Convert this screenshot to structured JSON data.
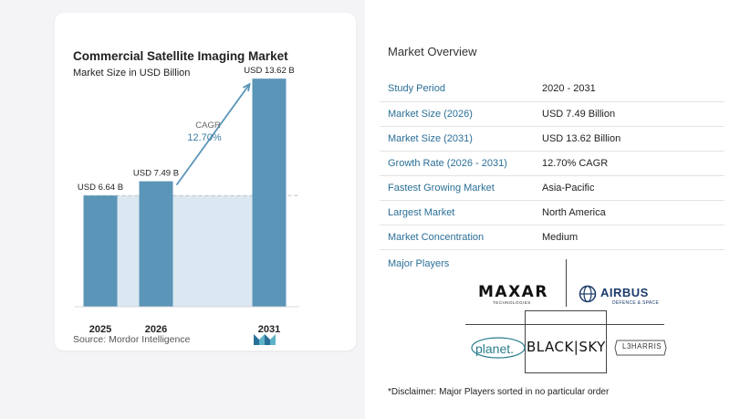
{
  "chart_data": {
    "type": "bar",
    "title": "Commercial Satellite Imaging Market",
    "subtitle": "Market Size in USD Billion",
    "categories": [
      "2025",
      "2026",
      "2031"
    ],
    "values": [
      6.64,
      7.49,
      13.62
    ],
    "data_labels": [
      "USD 6.64 B",
      "USD 7.49 B",
      "USD 13.62 B"
    ],
    "cagr_label": "CAGR",
    "cagr_value": "12.70%",
    "ylim": [
      0,
      14.5
    ],
    "grid": false,
    "colors": {
      "bar": "#5b95b8",
      "baseline_fill": "#dbe8f1",
      "arrow": "#5b95b8",
      "cagr_text": "#3d7fa6"
    }
  },
  "source": "Source:  Mordor Intelligence",
  "overview": {
    "title": "Market Overview",
    "rows": [
      {
        "label": "Study Period",
        "value": "2020 - 2031"
      },
      {
        "label": "Market Size (2026)",
        "value": "USD 7.49 Billion"
      },
      {
        "label": "Market Size (2031)",
        "value": "USD 13.62 Billion"
      },
      {
        "label": "Growth Rate (2026 - 2031)",
        "value": "12.70% CAGR"
      },
      {
        "label": "Fastest Growing Market",
        "value": "Asia-Pacific"
      },
      {
        "label": "Largest Market",
        "value": "North America"
      },
      {
        "label": "Market Concentration",
        "value": "Medium"
      }
    ]
  },
  "players": {
    "title": "Major Players",
    "logos": {
      "maxar": "MAXAR",
      "maxar_sub": "TECHNOLOGIES",
      "airbus": "AIRBUS",
      "airbus_sub": "DEFENCE & SPACE",
      "planet": "planet.",
      "blacksky": "BLACK|SKY",
      "l3harris": "L3HARRIS"
    }
  },
  "disclaimer": "*Disclaimer: Major Players sorted in no particular order"
}
